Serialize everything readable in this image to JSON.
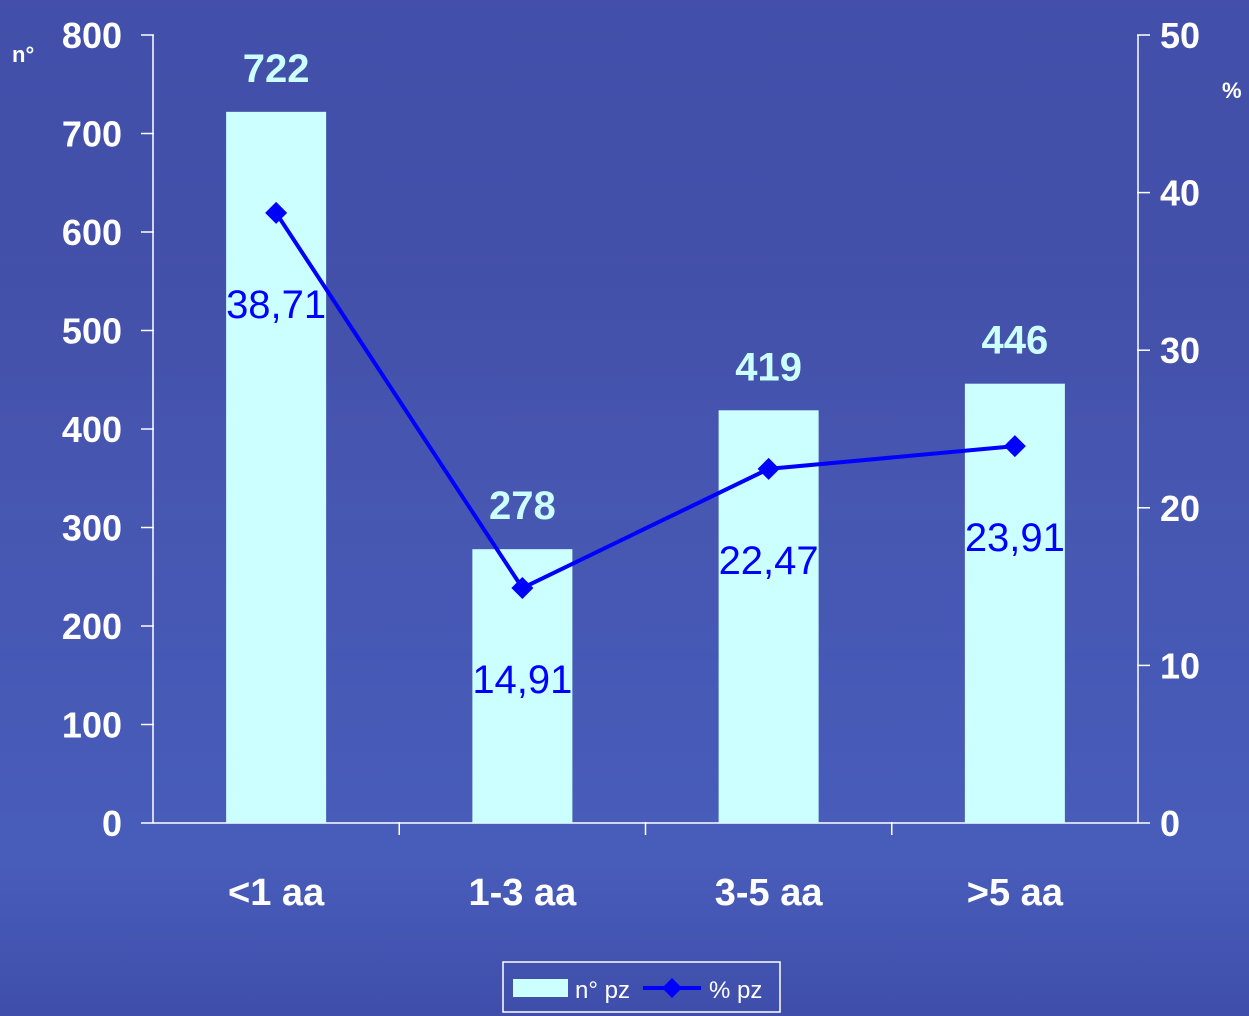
{
  "chart_data": {
    "type": "bar",
    "categories": [
      "<1 aa",
      "1-3 aa",
      "3-5 aa",
      ">5 aa"
    ],
    "series": [
      {
        "name": "n° pz",
        "type": "bar",
        "axis": "left",
        "values": [
          722,
          278,
          419,
          446
        ],
        "labels": [
          "722",
          "278",
          "419",
          "446"
        ]
      },
      {
        "name": "% pz",
        "type": "line",
        "axis": "right",
        "values": [
          38.71,
          14.91,
          22.47,
          23.91
        ],
        "labels": [
          "38,71",
          "14,91",
          "22,47",
          "23,91"
        ]
      }
    ],
    "ylabel": "n°",
    "y2label": "%",
    "ylim": [
      0,
      800
    ],
    "y2lim": [
      0,
      50
    ],
    "yticks": [
      "0",
      "100",
      "200",
      "300",
      "400",
      "500",
      "600",
      "700",
      "800"
    ],
    "y2ticks": [
      "0",
      "10",
      "20",
      "30",
      "40",
      "50"
    ],
    "grid": false,
    "legend": "bottom-center",
    "colors": {
      "bar": "#ccffff",
      "line": "#0000ff",
      "text": "#ffffff",
      "bar_label": "#ccffff",
      "line_label": "#0000ff",
      "axis": "#ffffff"
    }
  }
}
